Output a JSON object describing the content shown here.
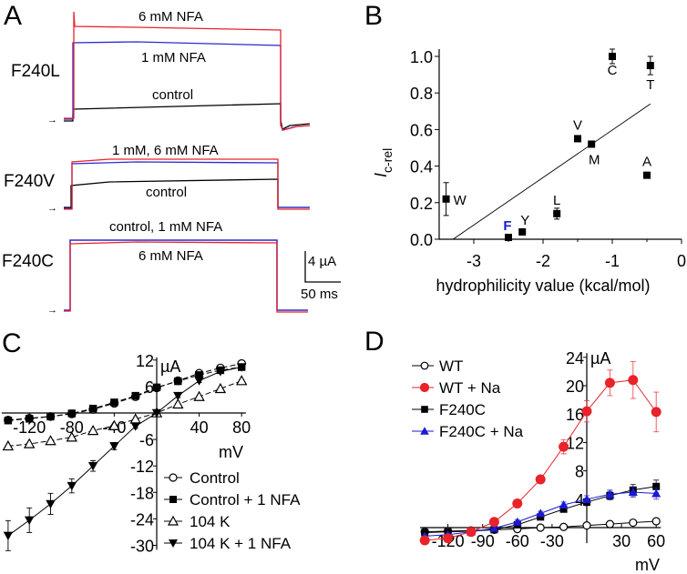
{
  "panels": {
    "A": {
      "letter": "A",
      "rows": [
        {
          "label": "F240L",
          "traces": [
            {
              "name": "6 mM NFA",
              "color": "#e8232a"
            },
            {
              "name": "1 mM NFA",
              "color": "#2a2ad0"
            },
            {
              "name": "control",
              "color": "#000000"
            }
          ]
        },
        {
          "label": "F240V",
          "traces": [
            {
              "name": "1 mM, 6 mM NFA",
              "color": "#e8232a"
            },
            {
              "name": "control",
              "color": "#000000"
            }
          ]
        },
        {
          "label": "F240C",
          "traces": [
            {
              "name": "control, 1 mM NFA",
              "color": "#2a2ad0"
            },
            {
              "name": "6 mM NFA",
              "color": "#e8232a"
            }
          ]
        }
      ],
      "scalebar": {
        "current": "4 µA",
        "time": "50 ms"
      },
      "arrow": "→"
    },
    "B": {
      "letter": "B"
    },
    "C": {
      "letter": "C"
    },
    "D": {
      "letter": "D"
    }
  },
  "chart_data": [
    {
      "id": "B",
      "type": "scatter",
      "title": "",
      "xlabel": "hydrophilicity value (kcal/mol)",
      "ylabel": "Ic-rel",
      "ylabel_main": "I",
      "ylabel_sub": "c-rel",
      "xlim": [
        -3.5,
        0
      ],
      "ylim": [
        0,
        1.0
      ],
      "xticks": [
        -3,
        -2,
        -1,
        0
      ],
      "xtick_labels": [
        "-3",
        "-2",
        "-1",
        "0"
      ],
      "yticks": [
        0.0,
        0.2,
        0.4,
        0.6,
        0.8,
        1.0
      ],
      "ytick_labels": [
        "0.0",
        "0.2",
        "0.4",
        "0.6",
        "0.8",
        "1.0"
      ],
      "points": [
        {
          "label": "W",
          "x": -3.4,
          "y": 0.22,
          "err": 0.09,
          "label_pos": "right"
        },
        {
          "label": "F",
          "x": -2.5,
          "y": 0.01,
          "err": 0,
          "label_pos": "above",
          "label_color": "#1a1ad6"
        },
        {
          "label": "Y",
          "x": -2.3,
          "y": 0.04,
          "err": 0,
          "label_pos": "above"
        },
        {
          "label": "L",
          "x": -1.8,
          "y": 0.14,
          "err": 0.03,
          "label_pos": "above"
        },
        {
          "label": "V",
          "x": -1.5,
          "y": 0.55,
          "err": 0,
          "label_pos": "above"
        },
        {
          "label": "M",
          "x": -1.3,
          "y": 0.52,
          "err": 0,
          "label_pos": "below"
        },
        {
          "label": "C",
          "x": -1.0,
          "y": 1.0,
          "err": 0.04,
          "label_pos": "below"
        },
        {
          "label": "A",
          "x": -0.5,
          "y": 0.35,
          "err": 0,
          "label_pos": "above"
        },
        {
          "label": "T",
          "x": -0.45,
          "y": 0.95,
          "err": 0.05,
          "label_pos": "below"
        }
      ],
      "fit_line": {
        "x": [
          -3.3,
          -0.45
        ],
        "y": [
          0.0,
          0.74
        ]
      },
      "grid": false
    },
    {
      "id": "C",
      "type": "line",
      "xlabel": "mV",
      "ylabel": "µA",
      "xlim": [
        -140,
        80
      ],
      "ylim": [
        -30,
        12
      ],
      "xticks": [
        -120,
        -80,
        -40,
        40,
        80
      ],
      "xtick_labels": [
        "-120",
        "-80",
        "-40",
        "40",
        "80"
      ],
      "yticks": [
        12,
        6,
        -6,
        -12,
        -18,
        -24,
        -30
      ],
      "ytick_labels": [
        "12",
        "6",
        "-6",
        "-12",
        "-18",
        "-24",
        "-30"
      ],
      "x": [
        -140,
        -120,
        -100,
        -80,
        -60,
        -40,
        -20,
        0,
        20,
        40,
        60,
        80
      ],
      "series": [
        {
          "name": "Control",
          "marker": "open-circle",
          "color": "#000000",
          "values": [
            -1.6,
            -1.2,
            -0.8,
            -0.2,
            0.8,
            2.2,
            3.7,
            5.7,
            7.3,
            9.0,
            10.2,
            11.2
          ]
        },
        {
          "name": "Control + 1 NFA",
          "marker": "filled-square",
          "color": "#000000",
          "values": [
            -1.7,
            -1.3,
            -0.8,
            -0.1,
            1.0,
            2.4,
            3.9,
            5.8,
            7.2,
            8.6,
            9.7,
            10.4
          ]
        },
        {
          "name": "104 K",
          "marker": "open-triangle-up",
          "color": "#000000",
          "values": [
            -7.5,
            -7.0,
            -6.3,
            -5.5,
            -4.0,
            -2.9,
            -1.4,
            0.0,
            2.0,
            3.7,
            5.5,
            7.3
          ]
        },
        {
          "name": "104 K + 1 NFA",
          "marker": "filled-triangle-down",
          "color": "#000000",
          "values": [
            -27.8,
            -24.3,
            -20.6,
            -16.5,
            -12.0,
            -7.5,
            -3.0,
            0.0,
            3.9,
            7.3,
            9.4,
            10.4
          ],
          "errors": [
            3.4,
            2.8,
            2.4,
            1.6,
            1.2,
            0.8,
            0.5,
            0,
            0.4,
            0.4,
            0.4,
            0.4
          ]
        }
      ],
      "legend_position": "bottom-right",
      "grid": false
    },
    {
      "id": "D",
      "type": "line",
      "xlabel": "mV",
      "ylabel": "µA",
      "xlim": [
        -140,
        60
      ],
      "ylim": [
        -2,
        24
      ],
      "xticks": [
        -120,
        -90,
        -60,
        -30,
        30,
        60
      ],
      "xtick_labels": [
        "-120",
        "-90",
        "-60",
        "-30",
        "30",
        "60"
      ],
      "yticks": [
        4,
        8,
        12,
        16,
        20,
        24
      ],
      "ytick_labels": [
        "4",
        "8",
        "12",
        "16",
        "20",
        "24"
      ],
      "x": [
        -140,
        -120,
        -100,
        -80,
        -60,
        -40,
        -20,
        0,
        20,
        40,
        60
      ],
      "series": [
        {
          "name": "WT",
          "marker": "open-circle",
          "color": "#000000",
          "values": [
            -0.6,
            -0.5,
            -0.4,
            -0.3,
            -0.2,
            0.0,
            0.1,
            0.3,
            0.5,
            0.7,
            0.9
          ],
          "errors": [
            0.2,
            0.2,
            0.2,
            0.2,
            0.2,
            0.2,
            0.2,
            0.2,
            0.2,
            0.2,
            0.2
          ]
        },
        {
          "name": "WT + Na",
          "marker": "filled-circle",
          "color": "#e8232a",
          "values": [
            -1.8,
            -1.5,
            -0.6,
            0.8,
            3.4,
            6.8,
            11.4,
            16.4,
            20.4,
            20.8,
            16.3
          ],
          "errors": [
            0.2,
            0.2,
            0.3,
            0.4,
            0.4,
            0.5,
            1.0,
            1.5,
            1.8,
            2.6,
            2.8
          ]
        },
        {
          "name": "F240C",
          "marker": "filled-square",
          "color": "#000000",
          "values": [
            -0.7,
            -0.6,
            -0.5,
            -0.3,
            0.4,
            1.5,
            2.6,
            3.6,
            4.5,
            5.3,
            5.8
          ],
          "errors": [
            0.2,
            0.2,
            0.2,
            0.2,
            0.3,
            0.3,
            0.4,
            0.5,
            0.6,
            0.8,
            0.9
          ]
        },
        {
          "name": "F240C + Na",
          "marker": "filled-triangle-up",
          "color": "#1a1ad6",
          "values": [
            -1.2,
            -1.0,
            -0.6,
            -0.1,
            0.8,
            2.0,
            3.2,
            4.0,
            4.7,
            5.0,
            4.8
          ],
          "errors": [
            0.2,
            0.2,
            0.2,
            0.2,
            0.3,
            0.3,
            0.4,
            0.5,
            0.6,
            0.7,
            0.8
          ]
        }
      ],
      "legend_position": "top-left",
      "grid": false
    }
  ]
}
